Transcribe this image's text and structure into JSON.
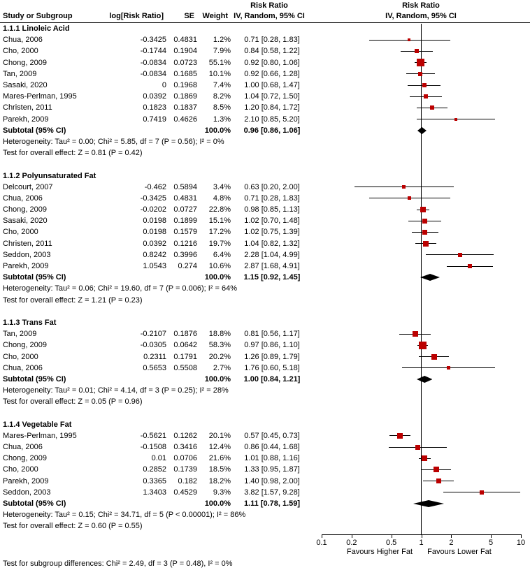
{
  "colors": {
    "marker": "#BB0000",
    "diamond": "#000000",
    "axis": "#000000"
  },
  "header": {
    "study": "Study or Subgroup",
    "logrr": "log[Risk Ratio]",
    "se": "SE",
    "weight": "Weight",
    "effect": "Risk Ratio",
    "method": "IV, Random, 95% CI"
  },
  "chart_data": {
    "type": "forest",
    "x_scale": "log",
    "x_range": [
      0.1,
      10
    ],
    "x_ticks": [
      "0.1",
      "0.2",
      "0.5",
      "1",
      "2",
      "5",
      "10"
    ],
    "xlabel_left": "Favours Higher Fat",
    "xlabel_right": "Favours Lower Fat",
    "effect_measure": "Risk Ratio",
    "model": "IV, Random, 95% CI",
    "subgroups": [
      {
        "title": "1.1.1 Linoleic Acid",
        "studies": [
          {
            "label": "Chua, 2006",
            "logrr": "-0.3425",
            "se": "0.4831",
            "weight": "1.2%",
            "ci": "0.71 [0.28, 1.83]",
            "est": 0.71,
            "lo": 0.28,
            "hi": 1.83
          },
          {
            "label": "Cho, 2000",
            "logrr": "-0.1744",
            "se": "0.1904",
            "weight": "7.9%",
            "ci": "0.84 [0.58, 1.22]",
            "est": 0.84,
            "lo": 0.58,
            "hi": 1.22
          },
          {
            "label": "Chong, 2009",
            "logrr": "-0.0834",
            "se": "0.0723",
            "weight": "55.1%",
            "ci": "0.92 [0.80, 1.06]",
            "est": 0.92,
            "lo": 0.8,
            "hi": 1.06
          },
          {
            "label": "Tan, 2009",
            "logrr": "-0.0834",
            "se": "0.1685",
            "weight": "10.1%",
            "ci": "0.92 [0.66, 1.28]",
            "est": 0.92,
            "lo": 0.66,
            "hi": 1.28
          },
          {
            "label": "Sasaki, 2020",
            "logrr": "0",
            "se": "0.1968",
            "weight": "7.4%",
            "ci": "1.00 [0.68, 1.47]",
            "est": 1.0,
            "lo": 0.68,
            "hi": 1.47
          },
          {
            "label": "Mares-Perlman, 1995",
            "logrr": "0.0392",
            "se": "0.1869",
            "weight": "8.2%",
            "ci": "1.04 [0.72, 1.50]",
            "est": 1.04,
            "lo": 0.72,
            "hi": 1.5
          },
          {
            "label": "Christen, 2011",
            "logrr": "0.1823",
            "se": "0.1837",
            "weight": "8.5%",
            "ci": "1.20 [0.84, 1.72]",
            "est": 1.2,
            "lo": 0.84,
            "hi": 1.72
          },
          {
            "label": "Parekh, 2009",
            "logrr": "0.7419",
            "se": "0.4626",
            "weight": "1.3%",
            "ci": "2.10 [0.85, 5.20]",
            "est": 2.1,
            "lo": 0.85,
            "hi": 5.2
          }
        ],
        "subtotal": {
          "label": "Subtotal (95% CI)",
          "weight": "100.0%",
          "ci": "0.96 [0.86, 1.06]",
          "est": 0.96,
          "lo": 0.86,
          "hi": 1.06
        },
        "heterogeneity": "Heterogeneity: Tau² = 0.00; Chi² = 5.85, df = 7 (P = 0.56); I² = 0%",
        "test": "Test for overall effect: Z = 0.81 (P = 0.42)"
      },
      {
        "title": "1.1.2 Polyunsaturated Fat",
        "studies": [
          {
            "label": "Delcourt, 2007",
            "logrr": "-0.462",
            "se": "0.5894",
            "weight": "3.4%",
            "ci": "0.63 [0.20, 2.00]",
            "est": 0.63,
            "lo": 0.2,
            "hi": 2.0
          },
          {
            "label": "Chua, 2006",
            "logrr": "-0.3425",
            "se": "0.4831",
            "weight": "4.8%",
            "ci": "0.71 [0.28, 1.83]",
            "est": 0.71,
            "lo": 0.28,
            "hi": 1.83
          },
          {
            "label": "Chong, 2009",
            "logrr": "-0.0202",
            "se": "0.0727",
            "weight": "22.8%",
            "ci": "0.98 [0.85, 1.13]",
            "est": 0.98,
            "lo": 0.85,
            "hi": 1.13
          },
          {
            "label": "Sasaki, 2020",
            "logrr": "0.0198",
            "se": "0.1899",
            "weight": "15.1%",
            "ci": "1.02 [0.70, 1.48]",
            "est": 1.02,
            "lo": 0.7,
            "hi": 1.48
          },
          {
            "label": "Cho, 2000",
            "logrr": "0.0198",
            "se": "0.1579",
            "weight": "17.2%",
            "ci": "1.02 [0.75, 1.39]",
            "est": 1.02,
            "lo": 0.75,
            "hi": 1.39
          },
          {
            "label": "Christen, 2011",
            "logrr": "0.0392",
            "se": "0.1216",
            "weight": "19.7%",
            "ci": "1.04 [0.82, 1.32]",
            "est": 1.04,
            "lo": 0.82,
            "hi": 1.32
          },
          {
            "label": "Seddon, 2003",
            "logrr": "0.8242",
            "se": "0.3996",
            "weight": "6.4%",
            "ci": "2.28 [1.04, 4.99]",
            "est": 2.28,
            "lo": 1.04,
            "hi": 4.99
          },
          {
            "label": "Parekh, 2009",
            "logrr": "1.0543",
            "se": "0.274",
            "weight": "10.6%",
            "ci": "2.87 [1.68, 4.91]",
            "est": 2.87,
            "lo": 1.68,
            "hi": 4.91
          }
        ],
        "subtotal": {
          "label": "Subtotal (95% CI)",
          "weight": "100.0%",
          "ci": "1.15 [0.92, 1.45]",
          "est": 1.15,
          "lo": 0.92,
          "hi": 1.45
        },
        "heterogeneity": "Heterogeneity: Tau² = 0.06; Chi² = 19.60, df = 7 (P = 0.006); I² = 64%",
        "test": "Test for overall effect: Z = 1.21 (P = 0.23)"
      },
      {
        "title": "1.1.3 Trans Fat",
        "studies": [
          {
            "label": "Tan, 2009",
            "logrr": "-0.2107",
            "se": "0.1876",
            "weight": "18.8%",
            "ci": "0.81 [0.56, 1.17]",
            "est": 0.81,
            "lo": 0.56,
            "hi": 1.17
          },
          {
            "label": "Chong, 2009",
            "logrr": "-0.0305",
            "se": "0.0642",
            "weight": "58.3%",
            "ci": "0.97 [0.86, 1.10]",
            "est": 0.97,
            "lo": 0.86,
            "hi": 1.1
          },
          {
            "label": "Cho, 2000",
            "logrr": "0.2311",
            "se": "0.1791",
            "weight": "20.2%",
            "ci": "1.26 [0.89, 1.79]",
            "est": 1.26,
            "lo": 0.89,
            "hi": 1.79
          },
          {
            "label": "Chua, 2006",
            "logrr": "0.5653",
            "se": "0.5508",
            "weight": "2.7%",
            "ci": "1.76 [0.60, 5.18]",
            "est": 1.76,
            "lo": 0.6,
            "hi": 5.18
          }
        ],
        "subtotal": {
          "label": "Subtotal (95% CI)",
          "weight": "100.0%",
          "ci": "1.00 [0.84, 1.21]",
          "est": 1.0,
          "lo": 0.84,
          "hi": 1.21
        },
        "heterogeneity": "Heterogeneity: Tau² = 0.01; Chi² = 4.14, df = 3 (P = 0.25); I² = 28%",
        "test": "Test for overall effect: Z = 0.05 (P = 0.96)"
      },
      {
        "title": "1.1.4 Vegetable Fat",
        "studies": [
          {
            "label": "Mares-Perlman, 1995",
            "logrr": "-0.5621",
            "se": "0.1262",
            "weight": "20.1%",
            "ci": "0.57 [0.45, 0.73]",
            "est": 0.57,
            "lo": 0.45,
            "hi": 0.73
          },
          {
            "label": "Chua, 2006",
            "logrr": "-0.1508",
            "se": "0.3416",
            "weight": "12.4%",
            "ci": "0.86 [0.44, 1.68]",
            "est": 0.86,
            "lo": 0.44,
            "hi": 1.68
          },
          {
            "label": "Chong, 2009",
            "logrr": "0.01",
            "se": "0.0706",
            "weight": "21.6%",
            "ci": "1.01 [0.88, 1.16]",
            "est": 1.01,
            "lo": 0.88,
            "hi": 1.16
          },
          {
            "label": "Cho, 2000",
            "logrr": "0.2852",
            "se": "0.1739",
            "weight": "18.5%",
            "ci": "1.33 [0.95, 1.87]",
            "est": 1.33,
            "lo": 0.95,
            "hi": 1.87
          },
          {
            "label": "Parekh, 2009",
            "logrr": "0.3365",
            "se": "0.182",
            "weight": "18.2%",
            "ci": "1.40 [0.98, 2.00]",
            "est": 1.4,
            "lo": 0.98,
            "hi": 2.0
          },
          {
            "label": "Seddon, 2003",
            "logrr": "1.3403",
            "se": "0.4529",
            "weight": "9.3%",
            "ci": "3.82 [1.57, 9.28]",
            "est": 3.82,
            "lo": 1.57,
            "hi": 9.28
          }
        ],
        "subtotal": {
          "label": "Subtotal (95% CI)",
          "weight": "100.0%",
          "ci": "1.11 [0.78, 1.59]",
          "est": 1.11,
          "lo": 0.78,
          "hi": 1.59
        },
        "heterogeneity": "Heterogeneity: Tau² = 0.15; Chi² = 34.71, df = 5 (P < 0.00001); I² = 86%",
        "test": "Test for overall effect: Z = 0.60 (P = 0.55)"
      }
    ],
    "subgroup_difference": "Test for subgroup differences: Chi² = 2.49, df = 3 (P = 0.48), I² = 0%"
  }
}
